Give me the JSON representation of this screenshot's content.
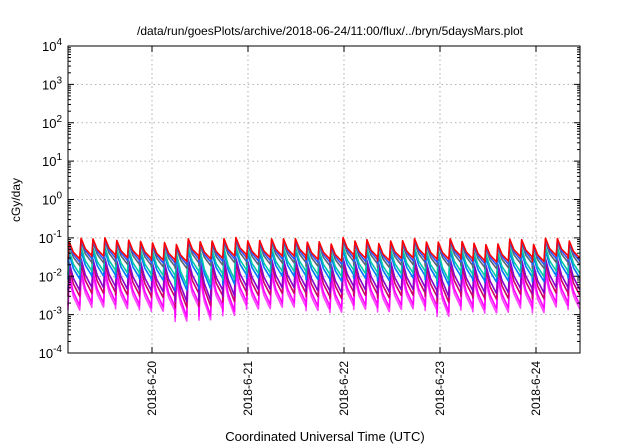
{
  "chart_data": {
    "type": "line",
    "title": "/data/run/goesPlots/archive/2018-06-24/11:00/flux/../bryn/5daysMars.plot",
    "xlabel": "Coordinated Universal Time (UTC)",
    "ylabel": "cGy/day",
    "yscale": "log",
    "ylim": [
      0.0001,
      10000
    ],
    "xlim": [
      "2018-06-19 03:00",
      "2018-06-24 11:00"
    ],
    "grid": true,
    "x_ticks": [
      "2018-6-20",
      "2018-6-21",
      "2018-6-22",
      "2018-6-23",
      "2018-6-24"
    ],
    "y_ticks": [
      {
        "base": "10",
        "exp": "4"
      },
      {
        "base": "10",
        "exp": "3"
      },
      {
        "base": "10",
        "exp": "2"
      },
      {
        "base": "10",
        "exp": "1"
      },
      {
        "base": "10",
        "exp": "0"
      },
      {
        "base": "10",
        "exp": "-1"
      },
      {
        "base": "10",
        "exp": "-2"
      },
      {
        "base": "10",
        "exp": "-3"
      },
      {
        "base": "10",
        "exp": "-4"
      }
    ],
    "description_pattern": "sawtooth with roughly 8 spikes per day; each spike rises sharply then decays",
    "series": [
      {
        "color": "#ff0000",
        "peak": 0.085,
        "trough": 0.03
      },
      {
        "color": "#3355ff",
        "peak": 0.08,
        "trough": 0.025
      },
      {
        "color": "#556677",
        "peak": 0.07,
        "trough": 0.02
      },
      {
        "color": "#00c8a8",
        "peak": 0.05,
        "trough": 0.012
      },
      {
        "color": "#0077ff",
        "peak": 0.04,
        "trough": 0.009
      },
      {
        "color": "#8800cc",
        "peak": 0.025,
        "trough": 0.0045
      },
      {
        "color": "#cc0066",
        "peak": 0.018,
        "trough": 0.0032
      },
      {
        "color": "#ff00ff",
        "peak": 0.012,
        "trough": 0.0018
      },
      {
        "color": "#ff44ff",
        "peak": 0.009,
        "trough": 0.0014
      }
    ]
  }
}
